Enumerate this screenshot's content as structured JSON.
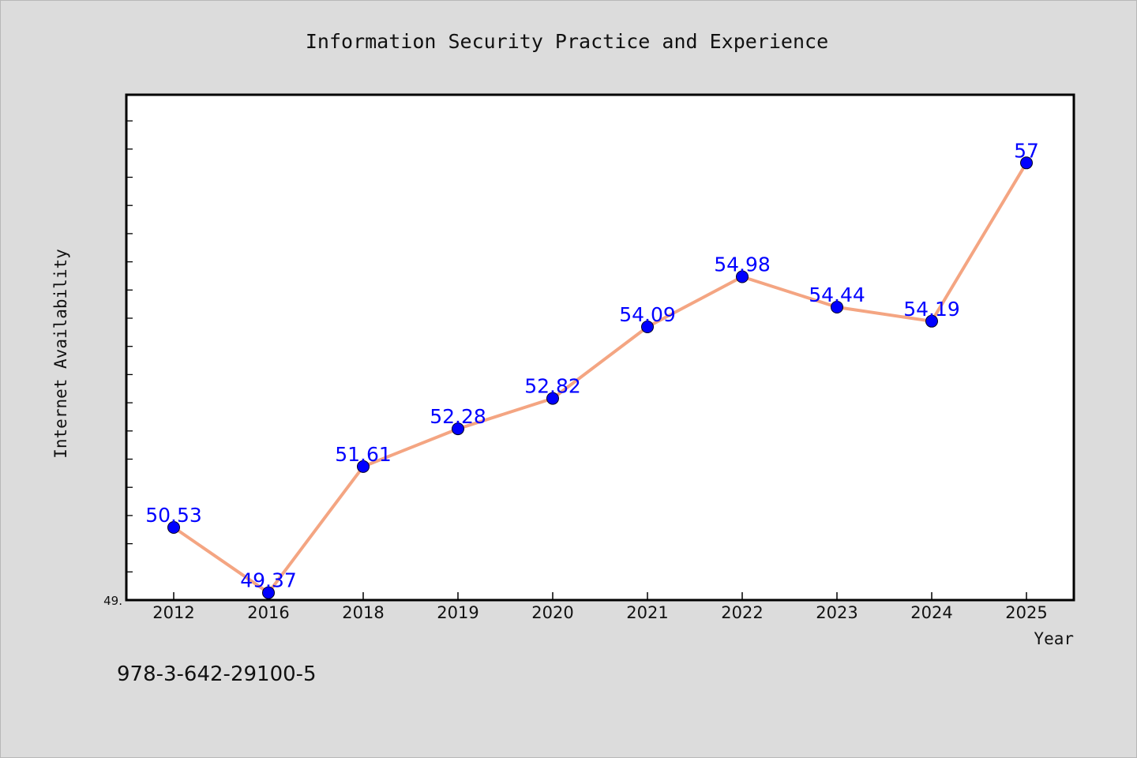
{
  "chart_data": {
    "type": "line",
    "title": "Information Security Practice and Experience",
    "xlabel": "Year",
    "ylabel": "Internet Availability",
    "categories": [
      "2012",
      "2016",
      "2018",
      "2019",
      "2020",
      "2021",
      "2022",
      "2023",
      "2024",
      "2025"
    ],
    "values": [
      50.53,
      49.37,
      51.61,
      52.28,
      52.82,
      54.09,
      54.98,
      54.44,
      54.19,
      57
    ],
    "data_labels": [
      "50.53",
      "49.37",
      "51.61",
      "52.28",
      "52.82",
      "54.09",
      "54.98",
      "54.44",
      "54.19",
      "57"
    ],
    "ylim": [
      49.24,
      58.21
    ],
    "y_min_label": "49.",
    "grid": false,
    "legend": "none",
    "colors": {
      "line": "#f4a582",
      "marker": "#0000ff",
      "data_label": "#0000ff",
      "plot_background": "#ffffff",
      "figure_background": "#dcdcdc"
    }
  },
  "footer": {
    "isbn": "978-3-642-29100-5"
  }
}
